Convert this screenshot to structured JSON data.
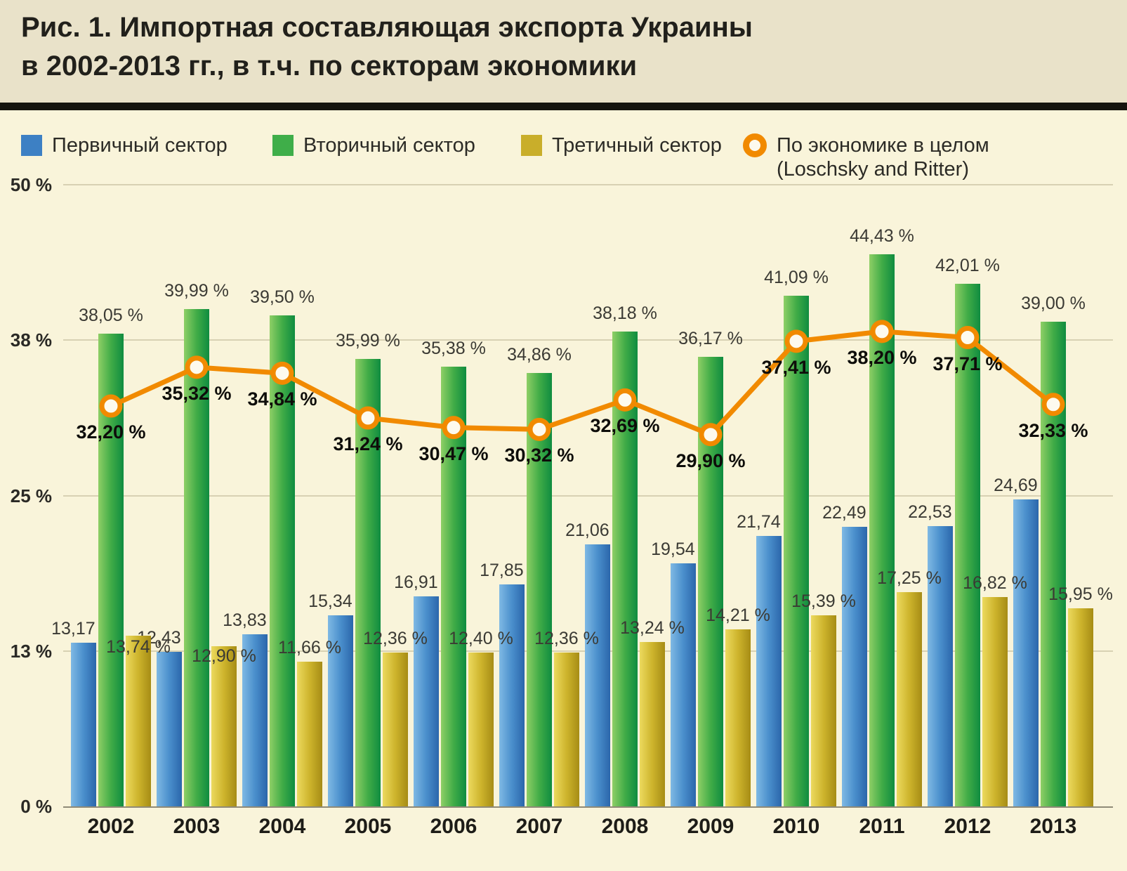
{
  "title": {
    "line1": "Рис. 1. Импортная составляющая экспорта Украины",
    "line2": "в 2002-2013 гг., в т.ч. по секторам экономики"
  },
  "legend": [
    {
      "label": "Первичный сектор",
      "color": "#3d80c4",
      "type": "square"
    },
    {
      "label": "Вторичный сектор",
      "color": "#3fae49",
      "type": "square"
    },
    {
      "label": "Третичный сектор",
      "color": "#c9ae2a",
      "type": "square"
    },
    {
      "label": "По экономике в целом",
      "label2": "(Loschsky and Ritter)",
      "color": "#f18a00",
      "type": "ring"
    }
  ],
  "chart_data": {
    "type": "bar+line",
    "title": "Рис. 1. Импортная составляющая экспорта Украины в 2002-2013 гг., в т.ч. по секторам экономики",
    "ylim": [
      0,
      50
    ],
    "grid": true,
    "legend_position": "top",
    "yticks": [
      {
        "value": 0,
        "label": "0 %"
      },
      {
        "value": 12.5,
        "label": "13 %"
      },
      {
        "value": 25,
        "label": "25 %"
      },
      {
        "value": 37.5,
        "label": "38 %"
      },
      {
        "value": 50,
        "label": "50 %"
      }
    ],
    "categories": [
      "2002",
      "2003",
      "2004",
      "2005",
      "2006",
      "2007",
      "2008",
      "2009",
      "2010",
      "2011",
      "2012",
      "2013"
    ],
    "series": [
      {
        "name": "Первичный сектор",
        "key": "primary",
        "type": "bar",
        "color_left": "#7fb9e4",
        "color": "#4a8fcc",
        "color_right": "#2b66ab",
        "values": [
          13.17,
          12.43,
          13.83,
          15.34,
          16.91,
          17.85,
          21.06,
          19.54,
          21.74,
          22.49,
          22.53,
          24.69
        ],
        "labels": [
          "13,17 %",
          "12,43 %",
          "13,83 %",
          "15,34 %",
          "16,91 %",
          "17,85 %",
          "21,06 %",
          "19,54 %",
          "21,74 %",
          "22,49 %",
          "22,53 %",
          "24,69 %"
        ]
      },
      {
        "name": "Вторичный сектор",
        "key": "secondary",
        "type": "bar",
        "color_left": "#8ecf66",
        "color": "#41ac47",
        "color_right": "#0f8c40",
        "values": [
          38.05,
          39.99,
          39.5,
          35.99,
          35.38,
          34.86,
          38.18,
          36.17,
          41.09,
          44.43,
          42.01,
          39.0
        ],
        "labels": [
          "38,05 %",
          "39,99 %",
          "39,50 %",
          "35,99 %",
          "35,38 %",
          "34,86 %",
          "38,18 %",
          "36,17 %",
          "41,09 %",
          "44,43 %",
          "42,01 %",
          "39,00 %"
        ]
      },
      {
        "name": "Третичный сектор",
        "key": "tertiary",
        "type": "bar",
        "color_left": "#ecd95e",
        "color": "#cdb42c",
        "color_right": "#a68c15",
        "values": [
          13.74,
          12.9,
          11.66,
          12.36,
          12.4,
          12.36,
          13.24,
          14.21,
          15.39,
          17.25,
          16.82,
          15.95
        ],
        "labels": [
          "13,74 %",
          "12,90 %",
          "11,66 %",
          "12,36 %",
          "12,40 %",
          "12,36 %",
          "13,24 %",
          "14,21 %",
          "15,39 %",
          "17,25 %",
          "16,82 %",
          "15,95 %"
        ]
      },
      {
        "name": "По экономике в целом (Loschsky and Ritter)",
        "key": "economy-total",
        "type": "line",
        "color": "#f18a00",
        "marker_fill": "#fdfaee",
        "values": [
          32.2,
          35.32,
          34.84,
          31.24,
          30.47,
          30.32,
          32.69,
          29.9,
          37.41,
          38.2,
          37.71,
          32.33
        ],
        "labels": [
          "32,20 %",
          "35,32 %",
          "34,84 %",
          "31,24 %",
          "30,47 %",
          "30,32 %",
          "32,69 %",
          "29,90 %",
          "37,41 %",
          "38,20 %",
          "37,71 %",
          "32,33 %"
        ]
      }
    ]
  }
}
